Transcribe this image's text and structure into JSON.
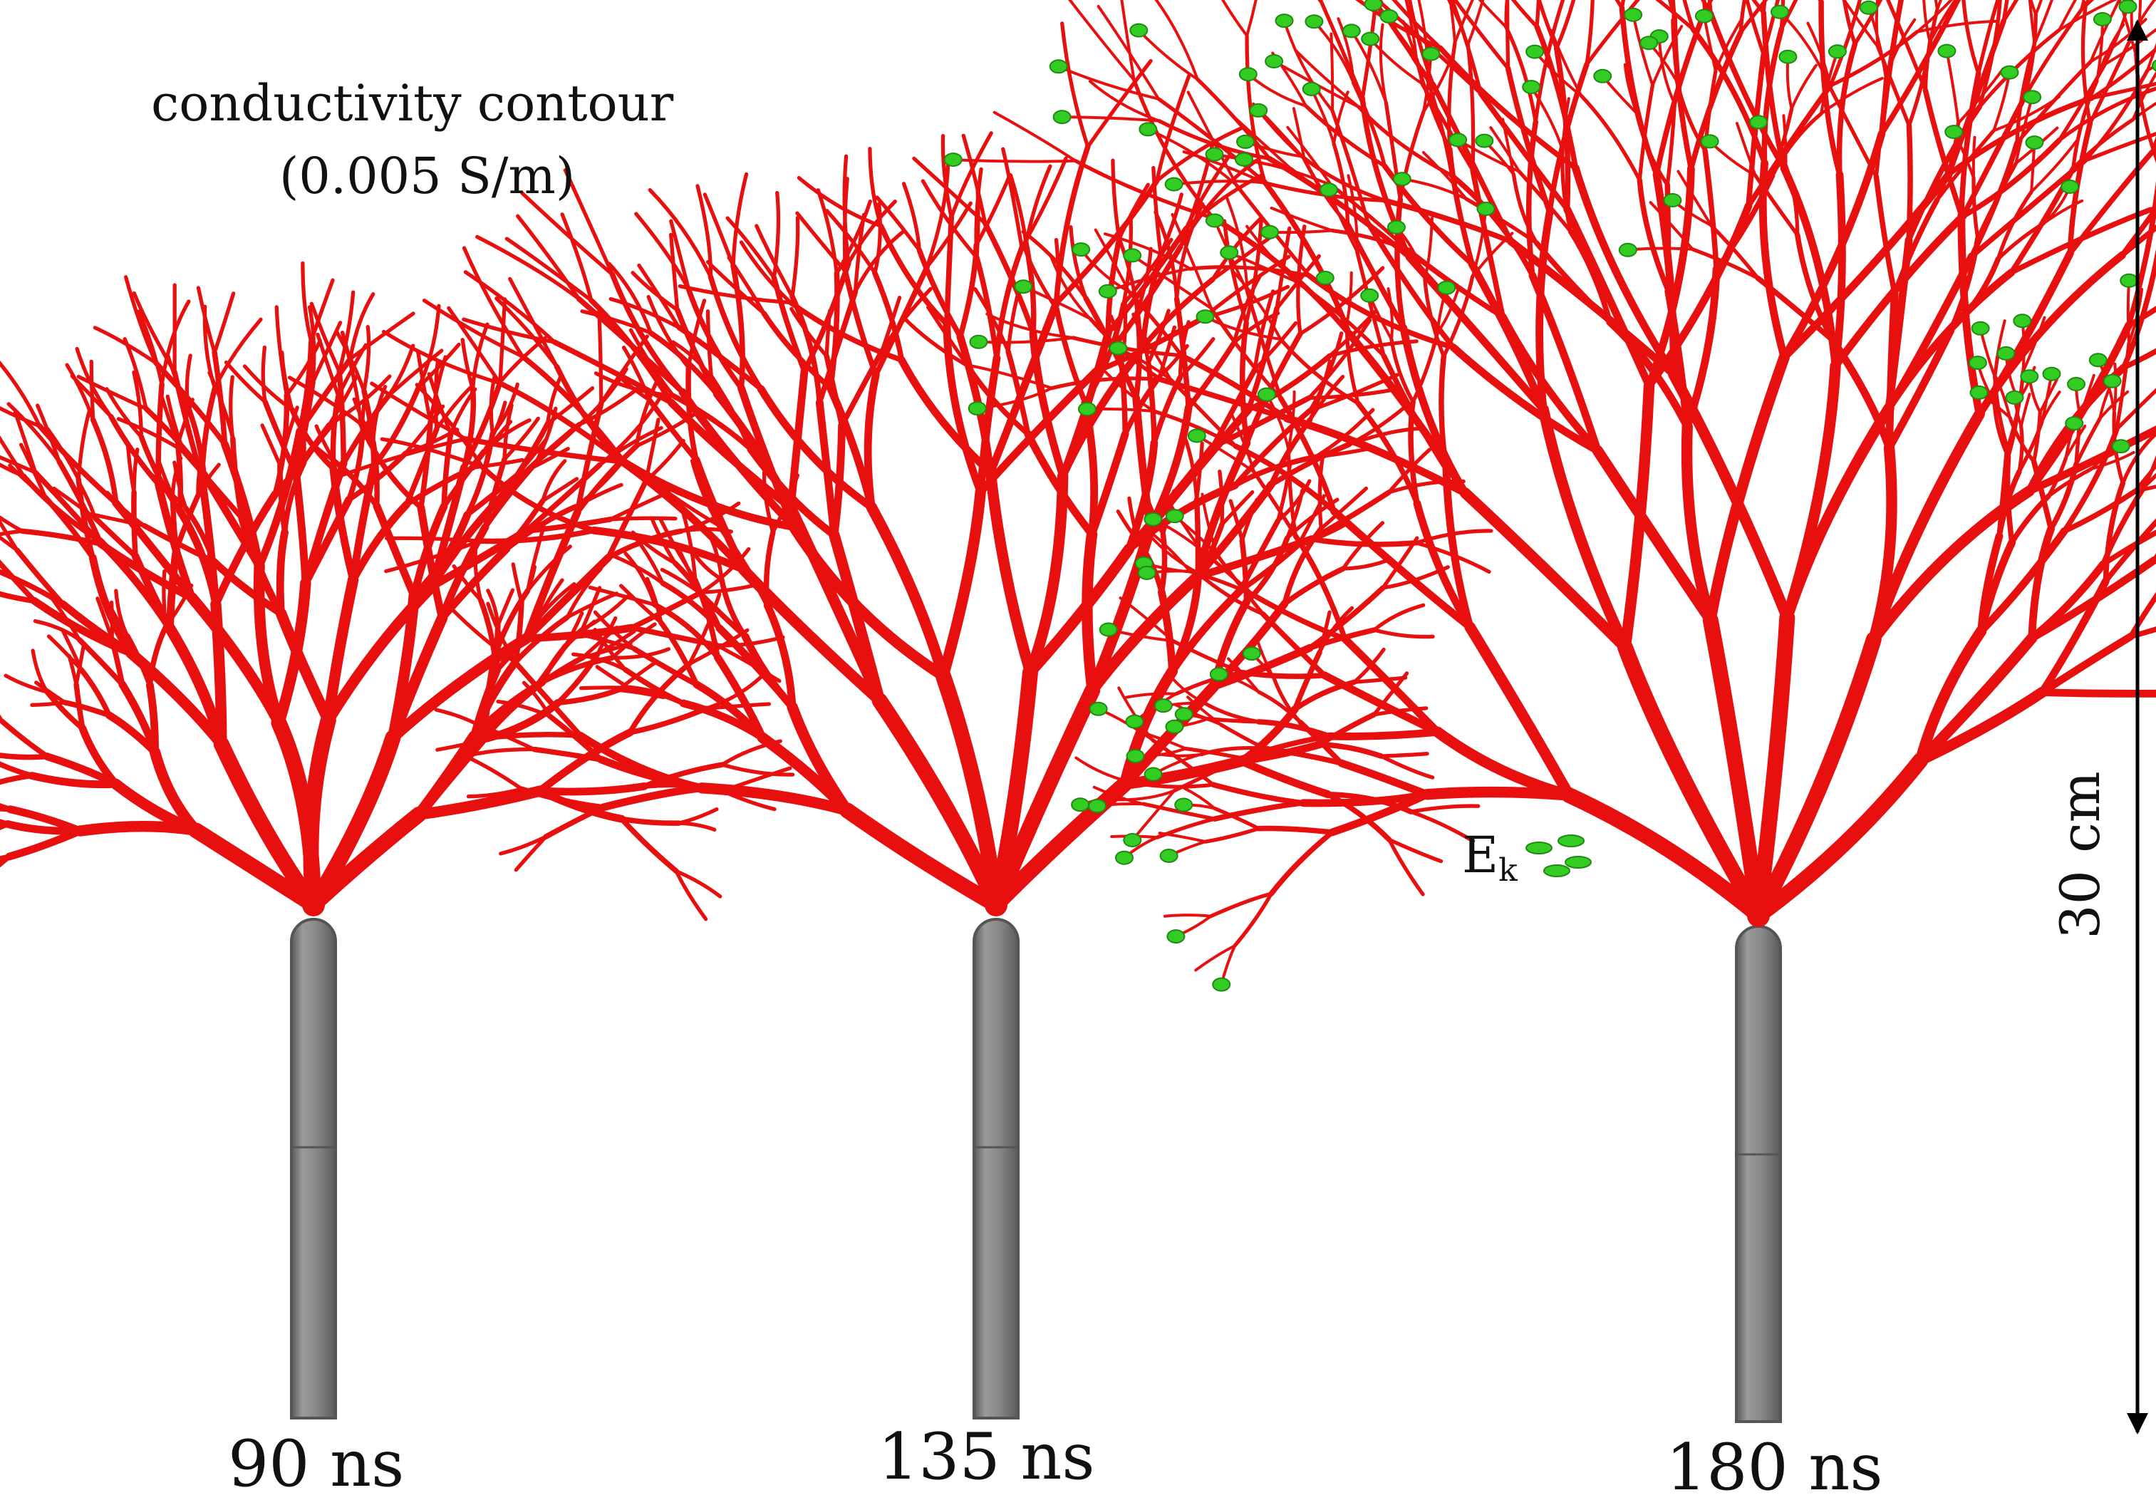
{
  "legend": {
    "line1": "conductivity contour",
    "line2": "(0.005 S/m)"
  },
  "snapshots": [
    {
      "time_label": "90 ns",
      "shows_field_isosurface": false
    },
    {
      "time_label": "135 ns",
      "shows_field_isosurface": false
    },
    {
      "time_label": "180 ns",
      "shows_field_isosurface": true
    }
  ],
  "field_label": {
    "base": "E",
    "subscript": "k"
  },
  "scale_bar": {
    "label": "30 cm"
  },
  "colors": {
    "streamer": "#e80f0f",
    "streamer_shade": "#a00000",
    "field_isosurface": "#33cc22",
    "electrode": "#8a8a8a",
    "electrode_dark": "#555555",
    "background": "#ffffff"
  }
}
